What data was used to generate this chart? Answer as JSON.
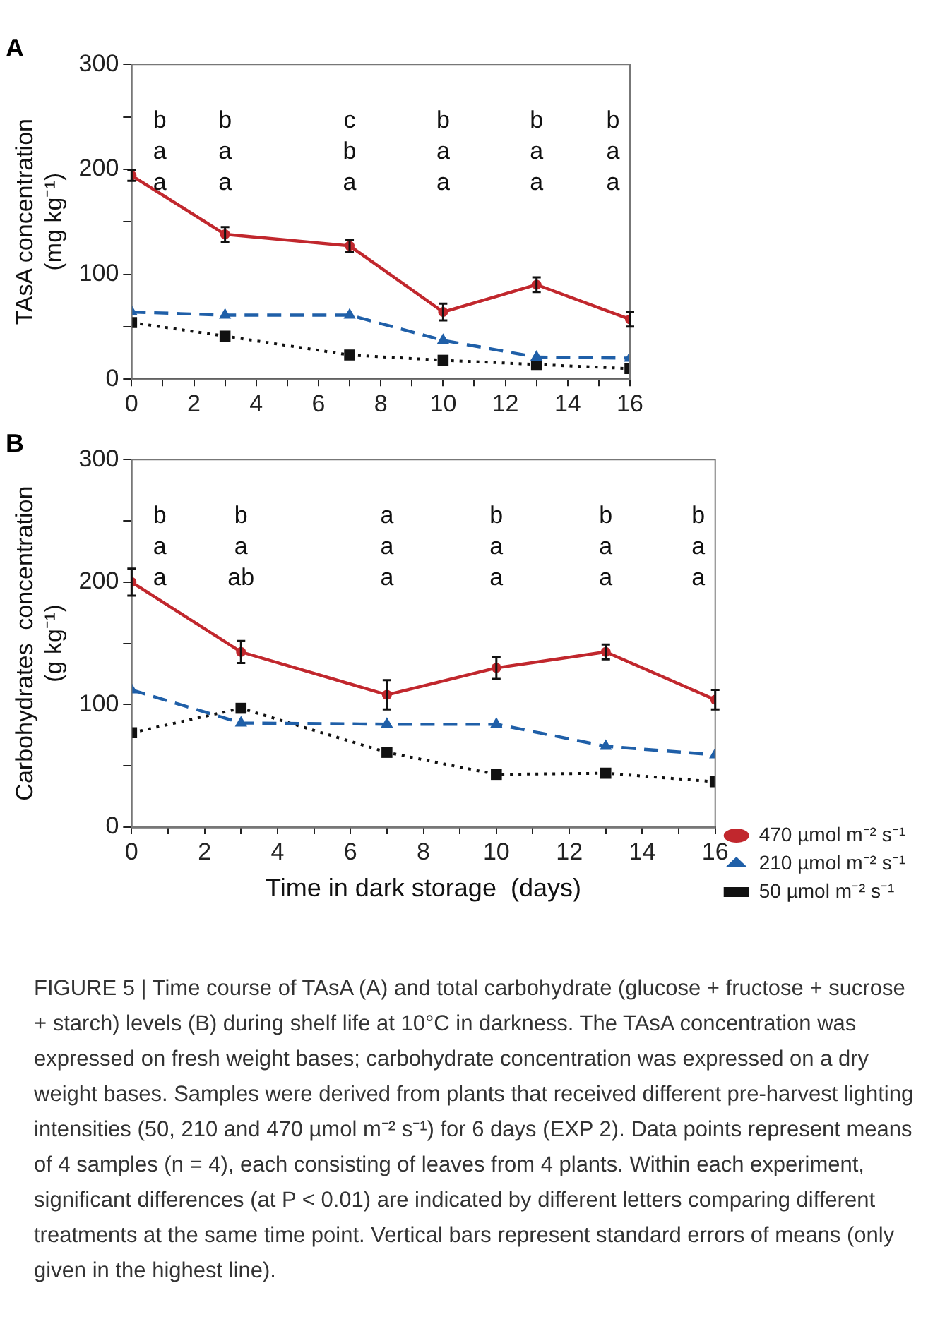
{
  "chart_data": [
    {
      "type": "line",
      "title": "A",
      "ylabel": "TAsA concentration\n(mg kg⁻¹)",
      "x": [
        0,
        3,
        7,
        10,
        13,
        16
      ],
      "xlim": [
        0,
        16
      ],
      "xticks": [
        0,
        {
          "value": 1,
          "label": null
        },
        2,
        {
          "value": 3,
          "label": null
        },
        4,
        {
          "value": 5,
          "label": null
        },
        6,
        {
          "value": 7,
          "label": null
        },
        8,
        {
          "value": 9,
          "label": null
        },
        10,
        {
          "value": 11,
          "label": null
        },
        12,
        {
          "value": 13,
          "label": null
        },
        14,
        {
          "value": 15,
          "label": null
        },
        16
      ],
      "ylim": [
        0,
        300
      ],
      "yticks": [
        0,
        {
          "value": 50,
          "label": null
        },
        100,
        {
          "value": 150,
          "label": null
        },
        200,
        {
          "value": 250,
          "label": null
        },
        300
      ],
      "grid": false,
      "legend": false,
      "series": [
        {
          "color": "#c1272d",
          "marker": "circle",
          "line_style": "solid",
          "values": [
            194,
            138,
            127,
            64,
            90,
            57
          ],
          "errors": [
            5,
            7,
            6,
            8,
            7,
            7
          ]
        },
        {
          "color": "#1f5fa8",
          "marker": "triangle",
          "line_style": "dashed",
          "values": [
            64,
            61,
            61,
            37,
            21,
            20
          ]
        },
        {
          "color": "#111111",
          "marker": "square",
          "line_style": "dotted",
          "values": [
            54,
            41,
            23,
            18,
            14,
            10
          ]
        }
      ],
      "annotations": [
        "b\na\na",
        "b\na\na",
        "c\nb\na",
        "b\na\na",
        "b\na\na",
        "b\na\na"
      ]
    },
    {
      "type": "line",
      "title": "B",
      "ylabel": "Carbohydrates  concentration\n(g kg⁻¹)",
      "xlabel": "Time in dark storage  (days)",
      "x": [
        0,
        3,
        7,
        10,
        13,
        16
      ],
      "xlim": [
        0,
        16
      ],
      "xticks": [
        0,
        {
          "value": 1,
          "label": null
        },
        2,
        {
          "value": 3,
          "label": null
        },
        4,
        {
          "value": 5,
          "label": null
        },
        6,
        {
          "value": 7,
          "label": null
        },
        8,
        {
          "value": 9,
          "label": null
        },
        10,
        {
          "value": 11,
          "label": null
        },
        12,
        {
          "value": 13,
          "label": null
        },
        14,
        {
          "value": 15,
          "label": null
        },
        16
      ],
      "ylim": [
        0,
        300
      ],
      "yticks": [
        0,
        {
          "value": 50,
          "label": null
        },
        100,
        {
          "value": 150,
          "label": null
        },
        200,
        {
          "value": 250,
          "label": null
        },
        300
      ],
      "grid": false,
      "legend": "bottom right",
      "series": [
        {
          "name": "470 µmol m⁻² s⁻¹",
          "color": "#c1272d",
          "marker": "circle",
          "line_style": "solid",
          "values": [
            200,
            143,
            108,
            130,
            143,
            104
          ],
          "errors": [
            11,
            9,
            12,
            9,
            6,
            8
          ]
        },
        {
          "name": "210 µmol m⁻² s⁻¹",
          "color": "#1f5fa8",
          "marker": "triangle",
          "line_style": "dashed",
          "values": [
            112,
            85,
            84,
            84,
            66,
            59
          ]
        },
        {
          "name": "50 µmol m⁻² s⁻¹",
          "color": "#111111",
          "marker": "square",
          "line_style": "dotted",
          "values": [
            77,
            97,
            61,
            43,
            44,
            37
          ]
        }
      ],
      "annotations": [
        "b\na\na",
        "b\na\nab",
        "a\na\na",
        "b\na\na",
        "b\na\na",
        "b\na\na",
        "FIGURE 5 | Time course of TAsA (A) and total carbohydrate (glucose + fructose + sucrose + starch) levels (B) during shelf life at 10°C in darkness. The TAsA concentration was expressed on fresh weight bases; carbohydrate concentration was expressed on a dry weight bases. Samples were derived from plants that received different pre-harvest lighting intensities (50, 210 and 470 µmol m⁻² s⁻¹) for 6 days (EXP 2). Data points represent means of 4 samples (n = 4), each consisting of leaves from 4 plants. Within each experiment, significant differences (at P < 0.01) are indicated by different letters comparing different treatments at the same time point. Vertical bars represent standard errors of means (only given in the highest line)."
      ]
    }
  ]
}
